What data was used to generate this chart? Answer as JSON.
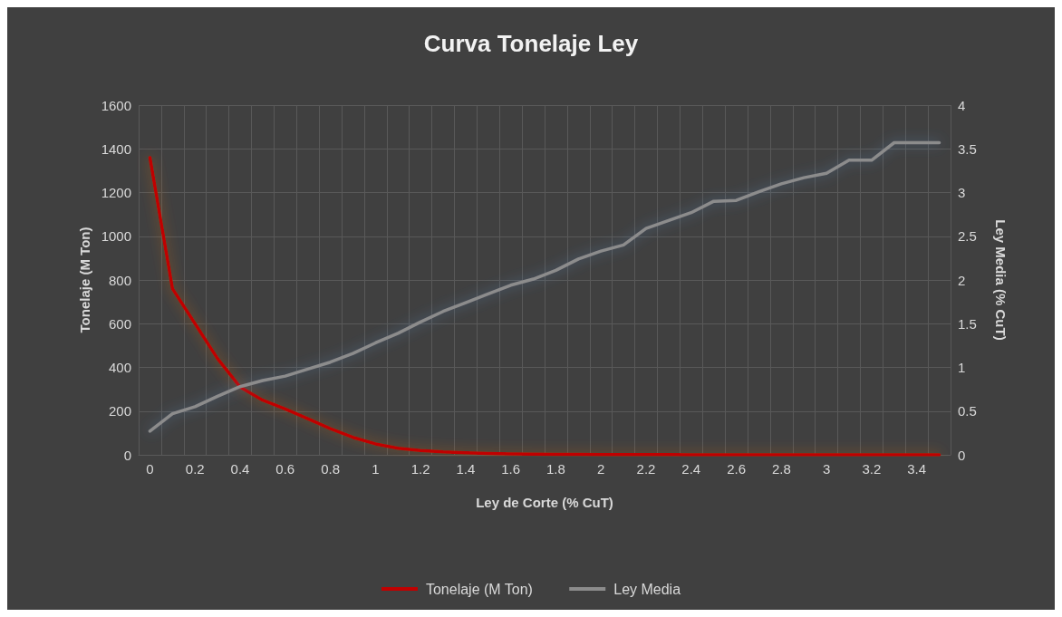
{
  "chart_data": {
    "type": "line",
    "title": "Curva Tonelaje Ley",
    "xlabel": "Ley de Corte (% CuT)",
    "ylabel": "Tonelaje (M Ton)",
    "y2label": "Ley Media (% CuT)",
    "categories": [
      "0",
      null,
      "0.2",
      null,
      "0.4",
      null,
      "0.6",
      null,
      "0.8",
      null,
      "1",
      null,
      "1.2",
      null,
      "1.4",
      null,
      "1.6",
      null,
      "1.8",
      null,
      "2",
      null,
      "2.2",
      null,
      "2.4",
      null,
      "2.6",
      null,
      "2.8",
      null,
      "3",
      null,
      "3.2",
      null,
      "3.4",
      null
    ],
    "series": [
      {
        "name": "Tonelaje (M Ton)",
        "color": "#c00000",
        "values": [
          1360,
          760,
          600,
          440,
          310,
          250,
          210,
          165,
          120,
          80,
          50,
          30,
          20,
          13,
          9,
          6,
          4,
          3,
          2,
          2,
          1,
          1,
          1,
          1,
          0,
          0,
          0,
          0,
          0,
          0,
          0,
          0,
          0,
          0,
          0,
          0
        ]
      },
      {
        "name": "Ley Media",
        "color": "#8c8c8c",
        "axis": "y2",
        "values": [
          0.27,
          0.47,
          0.55,
          0.67,
          0.78,
          0.85,
          0.9,
          0.98,
          1.06,
          1.16,
          1.28,
          1.39,
          1.52,
          1.64,
          1.74,
          1.84,
          1.94,
          2.01,
          2.11,
          2.24,
          2.33,
          2.4,
          2.59,
          2.68,
          2.77,
          2.9,
          2.91,
          3.01,
          3.1,
          3.17,
          3.22,
          3.37,
          3.37,
          3.57,
          3.57,
          3.57
        ]
      }
    ],
    "ylim": [
      0,
      1600
    ],
    "yticks": [
      0,
      200,
      400,
      600,
      800,
      1000,
      1200,
      1400,
      1600
    ],
    "y2lim": [
      0,
      4
    ],
    "y2ticks": [
      0,
      0.5,
      1,
      1.5,
      2,
      2.5,
      3,
      3.5,
      4
    ],
    "grid": true,
    "legend": "bottom"
  }
}
